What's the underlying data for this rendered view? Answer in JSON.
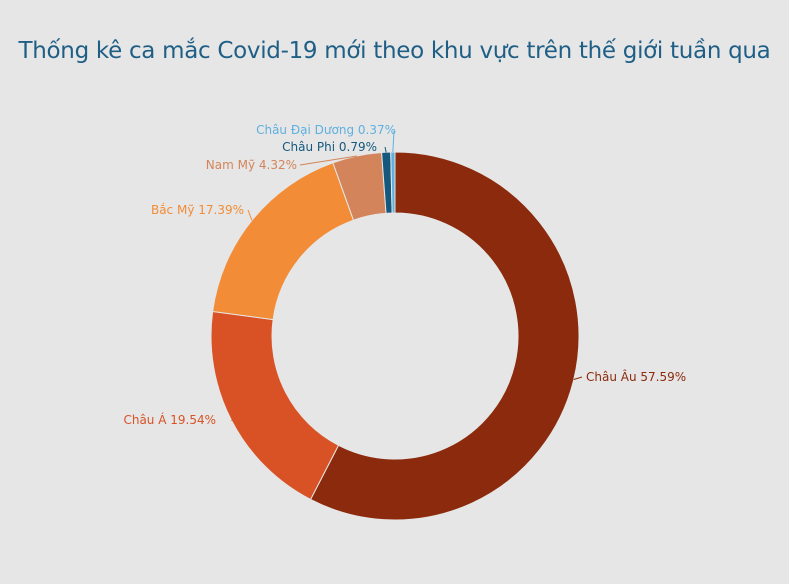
{
  "chart_data": {
    "type": "pie",
    "donut": true,
    "title": "Thống kê ca mắc Covid-19 mới theo khu vực trên thế giới tuần qua",
    "unit": "%",
    "slices": [
      {
        "label": "Châu Âu",
        "value": 57.59,
        "color": "#8b2a0c"
      },
      {
        "label": "Châu Á",
        "value": 19.54,
        "color": "#d95226"
      },
      {
        "label": "Bắc Mỹ",
        "value": 17.39,
        "color": "#f28c37"
      },
      {
        "label": "Nam Mỹ",
        "value": 4.32,
        "color": "#d4845a"
      },
      {
        "label": "Châu Phi",
        "value": 0.79,
        "color": "#15587d"
      },
      {
        "label": "Châu Đại Dương",
        "value": 0.37,
        "color": "#5fb0de"
      }
    ],
    "legend": "none"
  }
}
